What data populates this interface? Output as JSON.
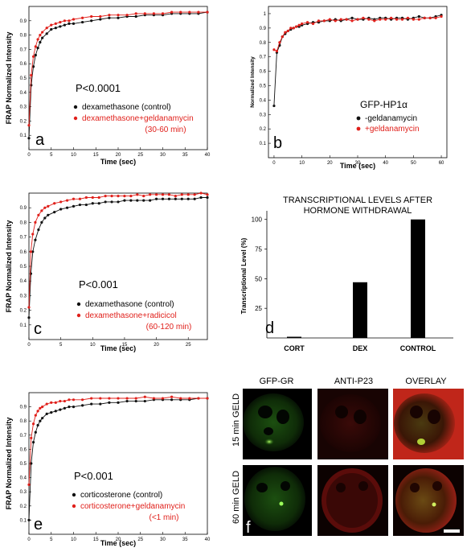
{
  "colors": {
    "control": "#111111",
    "treated": "#e0201b"
  },
  "chart_data": [
    {
      "id": "a",
      "type": "scatter",
      "letter": "a",
      "xlabel": "Time (sec)",
      "ylabel": "FRAP Normalized Intensity",
      "xlim": [
        0,
        40
      ],
      "ylim": [
        0,
        1.0
      ],
      "xticks": [
        "0",
        "5",
        "10",
        "15",
        "20",
        "25",
        "30",
        "35",
        "40"
      ],
      "yticks": [
        "0.1",
        "0.2",
        "0.3",
        "0.4",
        "0.5",
        "0.6",
        "0.7",
        "0.8",
        "0.9"
      ],
      "pvalue": "P<0.0001",
      "series": [
        {
          "name": "dexamethasone (control)",
          "color": "#111111",
          "x": [
            0,
            0.5,
            1,
            1.5,
            2,
            2.5,
            3,
            4,
            5,
            6,
            7,
            8,
            9,
            10,
            12,
            14,
            16,
            18,
            20,
            22,
            24,
            26,
            28,
            30,
            32,
            34,
            36,
            38,
            40
          ],
          "y": [
            0.08,
            0.45,
            0.58,
            0.66,
            0.71,
            0.75,
            0.78,
            0.81,
            0.84,
            0.85,
            0.86,
            0.87,
            0.88,
            0.88,
            0.89,
            0.9,
            0.91,
            0.92,
            0.92,
            0.93,
            0.93,
            0.94,
            0.94,
            0.94,
            0.95,
            0.95,
            0.95,
            0.95,
            0.96
          ]
        },
        {
          "name": "dexamethasone+geldanamycin",
          "name2": "(30-60 min)",
          "color": "#e0201b",
          "x": [
            0,
            0.5,
            1,
            1.5,
            2,
            2.5,
            3,
            4,
            5,
            6,
            7,
            8,
            9,
            10,
            12,
            14,
            16,
            18,
            20,
            22,
            24,
            26,
            28,
            30,
            32,
            34,
            36,
            38,
            40
          ],
          "y": [
            0.17,
            0.52,
            0.65,
            0.72,
            0.77,
            0.8,
            0.82,
            0.85,
            0.87,
            0.88,
            0.89,
            0.9,
            0.9,
            0.91,
            0.92,
            0.93,
            0.93,
            0.94,
            0.94,
            0.94,
            0.95,
            0.95,
            0.95,
            0.95,
            0.96,
            0.96,
            0.96,
            0.96,
            0.96
          ]
        }
      ]
    },
    {
      "id": "b",
      "type": "scatter",
      "letter": "b",
      "xlabel": "Time (sec)",
      "ylabel": "Normalized Intensity",
      "xlim": [
        -2,
        62
      ],
      "ylim": [
        0,
        1.05
      ],
      "xticks": [
        "0",
        "10",
        "20",
        "30",
        "40",
        "50",
        "60"
      ],
      "yticks": [
        "0.1",
        "0.2",
        "0.3",
        "0.4",
        "0.5",
        "0.6",
        "0.7",
        "0.8",
        "0.9",
        "1"
      ],
      "legend_title": "GFP-HP1α",
      "series": [
        {
          "name": "-geldanamycin",
          "color": "#111111",
          "x": [
            0,
            1,
            2,
            3,
            4,
            5,
            6,
            7,
            8,
            9,
            10,
            12,
            14,
            16,
            18,
            20,
            22,
            24,
            26,
            28,
            30,
            32,
            34,
            36,
            38,
            40,
            42,
            44,
            46,
            48,
            50,
            52,
            54,
            56,
            58,
            60
          ],
          "y": [
            0.36,
            0.73,
            0.78,
            0.84,
            0.86,
            0.88,
            0.89,
            0.9,
            0.91,
            0.91,
            0.92,
            0.93,
            0.94,
            0.94,
            0.95,
            0.95,
            0.96,
            0.95,
            0.96,
            0.97,
            0.96,
            0.96,
            0.97,
            0.96,
            0.97,
            0.97,
            0.96,
            0.97,
            0.97,
            0.96,
            0.97,
            0.98,
            0.97,
            0.97,
            0.98,
            0.99
          ]
        },
        {
          "name": "+geldanamycin",
          "color": "#e0201b",
          "x": [
            0,
            1,
            2,
            3,
            4,
            5,
            6,
            7,
            8,
            9,
            10,
            12,
            14,
            16,
            18,
            20,
            22,
            24,
            26,
            28,
            30,
            32,
            34,
            36,
            38,
            40,
            42,
            44,
            46,
            48,
            50,
            52,
            54,
            56,
            58,
            60
          ],
          "y": [
            0.75,
            0.74,
            0.8,
            0.84,
            0.87,
            0.88,
            0.9,
            0.9,
            0.91,
            0.92,
            0.93,
            0.94,
            0.93,
            0.95,
            0.95,
            0.96,
            0.95,
            0.96,
            0.96,
            0.95,
            0.96,
            0.97,
            0.96,
            0.95,
            0.96,
            0.96,
            0.97,
            0.96,
            0.96,
            0.97,
            0.96,
            0.96,
            0.97,
            0.97,
            0.97,
            0.98
          ]
        }
      ]
    },
    {
      "id": "c",
      "type": "scatter",
      "letter": "c",
      "xlabel": "Time (sec)",
      "ylabel": "FRAP Normalized Intensity",
      "xlim": [
        0,
        28
      ],
      "ylim": [
        0,
        1.0
      ],
      "xticks": [
        "0",
        "5",
        "10",
        "15",
        "20",
        "25"
      ],
      "yticks": [
        "0.1",
        "0.2",
        "0.3",
        "0.4",
        "0.5",
        "0.6",
        "0.7",
        "0.8",
        "0.9"
      ],
      "pvalue": "P<0.001",
      "series": [
        {
          "name": "dexamethasone (control)",
          "color": "#111111",
          "x": [
            0,
            0.3,
            0.6,
            1,
            1.5,
            2,
            2.5,
            3,
            4,
            5,
            6,
            7,
            8,
            9,
            10,
            11,
            12,
            13,
            14,
            15,
            16,
            17,
            18,
            19,
            20,
            21,
            22,
            23,
            24,
            25,
            26,
            27,
            28
          ],
          "y": [
            0.15,
            0.45,
            0.6,
            0.68,
            0.75,
            0.8,
            0.83,
            0.85,
            0.87,
            0.89,
            0.9,
            0.91,
            0.92,
            0.92,
            0.93,
            0.93,
            0.94,
            0.94,
            0.94,
            0.95,
            0.95,
            0.95,
            0.95,
            0.95,
            0.96,
            0.96,
            0.96,
            0.96,
            0.96,
            0.96,
            0.96,
            0.97,
            0.97
          ]
        },
        {
          "name": "dexamethasone+radicicol",
          "name2": "(60-120 min)",
          "color": "#e0201b",
          "x": [
            0,
            0.3,
            0.6,
            1,
            1.5,
            2,
            2.5,
            3,
            4,
            5,
            6,
            7,
            8,
            9,
            10,
            11,
            12,
            13,
            14,
            15,
            16,
            17,
            18,
            19,
            20,
            21,
            22,
            23,
            24,
            25,
            26,
            27,
            28
          ],
          "y": [
            0.22,
            0.6,
            0.72,
            0.8,
            0.85,
            0.88,
            0.9,
            0.91,
            0.93,
            0.94,
            0.95,
            0.96,
            0.96,
            0.97,
            0.97,
            0.97,
            0.98,
            0.98,
            0.98,
            0.98,
            0.98,
            0.99,
            0.98,
            0.99,
            0.99,
            0.99,
            0.99,
            0.98,
            0.99,
            0.99,
            0.99,
            1.0,
            0.99
          ]
        }
      ]
    },
    {
      "id": "d",
      "type": "bar",
      "title": "TRANSCRIPTIONAL LEVELS AFTER",
      "title2": "HORMONE WITHDRAWAL",
      "letter": "d",
      "ylabel": "Transcriptional Level (%)",
      "categories": [
        "CORT",
        "DEX",
        "CONTROL"
      ],
      "values": [
        1,
        47,
        100
      ],
      "ylim": [
        0,
        110
      ],
      "yticks": [
        "25",
        "50",
        "75",
        "100"
      ]
    },
    {
      "id": "e",
      "type": "scatter",
      "letter": "e",
      "xlabel": "Time (sec)",
      "ylabel": "FRAP Normalized Intensity",
      "xlim": [
        0,
        40
      ],
      "ylim": [
        0,
        1.0
      ],
      "xticks": [
        "0",
        "5",
        "10",
        "15",
        "20",
        "25",
        "30",
        "35",
        "40"
      ],
      "yticks": [
        "0.1",
        "0.2",
        "0.3",
        "0.4",
        "0.5",
        "0.6",
        "0.7",
        "0.8",
        "0.9"
      ],
      "pvalue": "P<0.001",
      "series": [
        {
          "name": "corticosterone (control)",
          "color": "#111111",
          "x": [
            0,
            0.5,
            1,
            1.5,
            2,
            2.5,
            3,
            4,
            5,
            6,
            7,
            8,
            9,
            10,
            12,
            14,
            16,
            18,
            20,
            22,
            24,
            26,
            28,
            30,
            32,
            34,
            36,
            38,
            40
          ],
          "y": [
            0.1,
            0.5,
            0.65,
            0.72,
            0.77,
            0.8,
            0.82,
            0.85,
            0.86,
            0.87,
            0.88,
            0.89,
            0.9,
            0.9,
            0.91,
            0.92,
            0.92,
            0.93,
            0.93,
            0.94,
            0.94,
            0.94,
            0.95,
            0.95,
            0.95,
            0.95,
            0.95,
            0.96,
            0.96
          ]
        },
        {
          "name": "corticosterone+geldanamycin",
          "name2": "(<1 min)",
          "color": "#e0201b",
          "x": [
            0,
            0.5,
            1,
            1.5,
            2,
            2.5,
            3,
            4,
            5,
            6,
            7,
            8,
            9,
            10,
            12,
            14,
            16,
            18,
            20,
            22,
            24,
            26,
            28,
            30,
            32,
            34,
            36,
            38,
            40
          ],
          "y": [
            0.35,
            0.68,
            0.78,
            0.84,
            0.87,
            0.89,
            0.9,
            0.92,
            0.93,
            0.93,
            0.94,
            0.94,
            0.95,
            0.95,
            0.95,
            0.96,
            0.96,
            0.96,
            0.96,
            0.96,
            0.96,
            0.97,
            0.96,
            0.96,
            0.97,
            0.96,
            0.96,
            0.96,
            0.96
          ]
        }
      ]
    }
  ],
  "micrograph": {
    "letter": "f",
    "columns": [
      "GFP-GR",
      "ANTI-P23",
      "OVERLAY"
    ],
    "rows": [
      "15 min GELD",
      "60 min GELD"
    ]
  }
}
